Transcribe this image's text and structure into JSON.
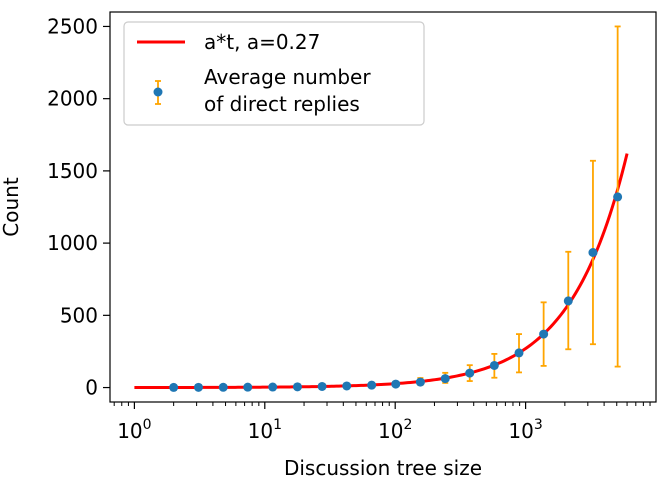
{
  "chart_data": {
    "type": "scatter",
    "xscale": "log",
    "xlabel": "Discussion tree size",
    "ylabel": "Count",
    "xlim": [
      0.65,
      10000
    ],
    "ylim": [
      -100,
      2600
    ],
    "xticks": [
      {
        "value": 1,
        "base": "10",
        "exp": "0"
      },
      {
        "value": 10,
        "base": "10",
        "exp": "1"
      },
      {
        "value": 100,
        "base": "10",
        "exp": "2"
      },
      {
        "value": 1000,
        "base": "10",
        "exp": "3"
      }
    ],
    "yticks": [
      0,
      500,
      1000,
      1500,
      2000,
      2500
    ],
    "colors": {
      "fit": "#ff0000",
      "points": "#1f77b4",
      "errorbars": "#ffa500",
      "legend_border": "#cccccc"
    },
    "series": [
      {
        "name": "a*t, a=0.27",
        "kind": "line",
        "formula": "a*t",
        "a": 0.27,
        "x_range": [
          1,
          6000
        ]
      },
      {
        "name": "Average number of direct replies",
        "kind": "errorbar",
        "x": [
          2,
          3.1,
          4.8,
          7.4,
          11.5,
          17.8,
          27.5,
          42.5,
          66,
          101,
          156,
          242,
          373,
          576,
          890,
          1375,
          2125,
          3285,
          5080
        ],
        "y": [
          1,
          1.3,
          1.8,
          2.7,
          3.5,
          5,
          7.5,
          11,
          16.5,
          24,
          38,
          62,
          100,
          153,
          240,
          370,
          600,
          935,
          1320
        ],
        "err_low": [
          0.5,
          0.7,
          1.0,
          1.5,
          2,
          3,
          4,
          6,
          9,
          13,
          20,
          30,
          55,
          85,
          135,
          220,
          335,
          635,
          1175
        ],
        "err_high": [
          0.6,
          0.8,
          1.2,
          1.8,
          2.5,
          3.5,
          5,
          7.5,
          11,
          15,
          28,
          40,
          55,
          80,
          130,
          220,
          340,
          635,
          1180
        ]
      }
    ],
    "legend": {
      "placement": "top-left",
      "entries": [
        {
          "label_lines": [
            "a*t, a=0.27"
          ]
        },
        {
          "label_lines": [
            "Average number",
            "of direct replies"
          ]
        }
      ]
    }
  }
}
